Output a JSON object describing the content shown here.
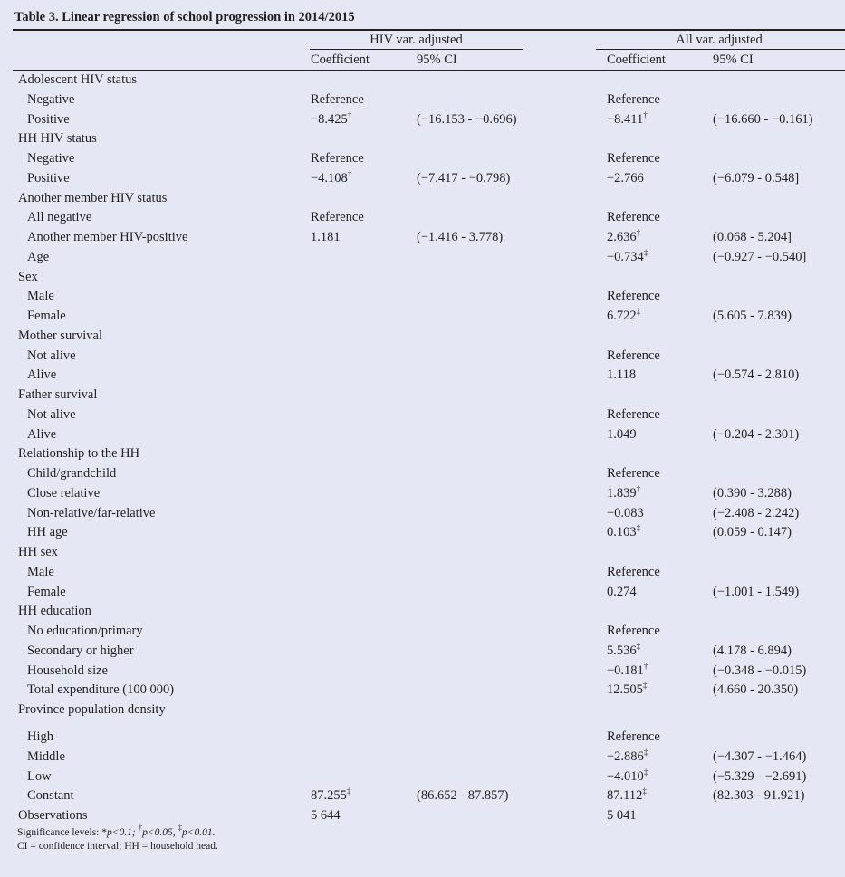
{
  "title": "Table 3. Linear regression of school progression in 2014/2015",
  "groups": [
    "HIV var. adjusted",
    "All var. adjusted"
  ],
  "columns": [
    "Coefficient",
    "95% CI",
    "Coefficient",
    "95% CI"
  ],
  "rows": [
    {
      "label": "Adolescent HIV status",
      "indent": false
    },
    {
      "label": "Negative",
      "indent": true,
      "c1": "Reference",
      "c2": "Reference"
    },
    {
      "label": "Positive",
      "indent": true,
      "c1": "−8.425",
      "s1": "†",
      "ci1": "(−16.153 - −0.696)",
      "c2": "−8.411",
      "s2": "†",
      "ci2": "(−16.660 - −0.161)"
    },
    {
      "label": "HH HIV status",
      "indent": false
    },
    {
      "label": "Negative",
      "indent": true,
      "c1": "Reference",
      "c2": "Reference"
    },
    {
      "label": "Positive",
      "indent": true,
      "c1": "−4.108",
      "s1": "†",
      "ci1": "(−7.417 - −0.798)",
      "c2": "−2.766",
      "ci2": "(−6.079 - 0.548]"
    },
    {
      "label": "Another member HIV status",
      "indent": false
    },
    {
      "label": "All negative",
      "indent": true,
      "c1": "Reference",
      "c2": "Reference"
    },
    {
      "label": "Another member HIV-positive",
      "indent": true,
      "c1": "1.181",
      "ci1": "(−1.416 - 3.778)",
      "c2": "2.636",
      "s2": "†",
      "ci2": "(0.068 - 5.204]"
    },
    {
      "label": "Age",
      "indent": true,
      "c2": "−0.734",
      "s2": "‡",
      "ci2": "(−0.927 - −0.540]"
    },
    {
      "label": "Sex",
      "indent": false
    },
    {
      "label": "Male",
      "indent": true,
      "c2": "Reference"
    },
    {
      "label": "Female",
      "indent": true,
      "c2": "6.722",
      "s2": "‡",
      "ci2": "(5.605 - 7.839)"
    },
    {
      "label": "Mother survival",
      "indent": false
    },
    {
      "label": "Not alive",
      "indent": true,
      "c2": "Reference"
    },
    {
      "label": "Alive",
      "indent": true,
      "c2": "1.118",
      "ci2": "(−0.574 - 2.810)"
    },
    {
      "label": "Father survival",
      "indent": false
    },
    {
      "label": "Not alive",
      "indent": true,
      "c2": "Reference"
    },
    {
      "label": "Alive",
      "indent": true,
      "c2": "1.049",
      "ci2": "(−0.204 - 2.301)"
    },
    {
      "label": "Relationship to the HH",
      "indent": false
    },
    {
      "label": "Child/grandchild",
      "indent": true,
      "c2": "Reference"
    },
    {
      "label": "Close relative",
      "indent": true,
      "c2": "1.839",
      "s2": "†",
      "ci2": "(0.390 - 3.288)"
    },
    {
      "label": "Non-relative/far-relative",
      "indent": true,
      "c2": "−0.083",
      "ci2": "(−2.408 - 2.242)"
    },
    {
      "label": "HH age",
      "indent": true,
      "c2": "0.103",
      "s2": "‡",
      "ci2": "(0.059 - 0.147)"
    },
    {
      "label": "HH sex",
      "indent": false
    },
    {
      "label": "Male",
      "indent": true,
      "c2": "Reference"
    },
    {
      "label": "Female",
      "indent": true,
      "c2": "0.274",
      "ci2": "(−1.001 - 1.549)"
    },
    {
      "label": "HH education",
      "indent": false
    },
    {
      "label": "No education/primary",
      "indent": true,
      "c2": "Reference"
    },
    {
      "label": "Secondary or higher",
      "indent": true,
      "c2": "5.536",
      "s2": "‡",
      "ci2": "(4.178 - 6.894)"
    },
    {
      "label": "Household size",
      "indent": true,
      "c2": "−0.181",
      "s2": "†",
      "ci2": "(−0.348 - −0.015)"
    },
    {
      "label": "Total expenditure (100 000)",
      "indent": true,
      "c2": "12.505",
      "s2": "‡",
      "ci2": "(4.660 - 20.350)"
    },
    {
      "label": "Province population density",
      "indent": false
    },
    {
      "label": "High",
      "indent": true,
      "gap": true,
      "c2": "Reference"
    },
    {
      "label": "Middle",
      "indent": true,
      "c2": "−2.886",
      "s2": "‡",
      "ci2": "(−4.307 - −1.464)"
    },
    {
      "label": "Low",
      "indent": true,
      "c2": "−4.010",
      "s2": "‡",
      "ci2": "(−5.329 - −2.691)"
    },
    {
      "label": "Constant",
      "indent": true,
      "c1": "87.255",
      "s1": "‡",
      "ci1": "(86.652 - 87.857)",
      "c2": "87.112",
      "s2": "‡",
      "ci2": "(82.303 - 91.921)"
    },
    {
      "label": "Observations",
      "indent": false,
      "c1": "5 644",
      "c2": "5 041"
    }
  ],
  "footnotes": {
    "sig_prefix": "Significance levels: *",
    "p1": "p<0.1; ",
    "dagger": "†",
    "p2": "p<0.05, ",
    "ddagger": "‡",
    "p3": "p<0.01.",
    "ci_note": "CI = confidence interval; HH = household head."
  }
}
